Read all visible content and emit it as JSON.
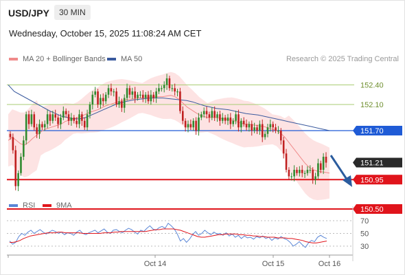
{
  "header": {
    "symbol": "USD/JPY",
    "timeframe": "30 MIN",
    "datetime": "Wednesday, October 15, 2025 11:08:24 AM CET"
  },
  "legend": {
    "ma20_label": "MA 20 + Bollinger Bands",
    "ma50_label": "MA 50",
    "credit": "Research © 2025 Trading Central",
    "rsi_label": "RSI",
    "ma9_label": "9MA"
  },
  "colors": {
    "ma20": "#f08a8a",
    "bands_fill": "#fde0e0",
    "ma50": "#3a5a9e",
    "candle_up": "#2f8a2f",
    "candle_down": "#c02020",
    "resistance_light": "#a9cd73",
    "pivot_line": "#1f5bd6",
    "support_line": "#e0141b",
    "price_tag": "#2a2a2a",
    "rsi": "#5a86d6",
    "rsi_ma": "#e0141b",
    "arrow": "#2b5c9e"
  },
  "chart_data": {
    "type": "candlestick",
    "instrument": "USD/JPY",
    "timeframe": "30 MIN",
    "x_tick_labels": [
      "Oct 14",
      "Oct 15",
      "Oct 16"
    ],
    "y_range": [
      150.2,
      152.95
    ],
    "levels": [
      {
        "value": 152.4,
        "label": "152.40",
        "style": "light"
      },
      {
        "value": 152.1,
        "label": "152.10",
        "style": "light"
      },
      {
        "value": 151.7,
        "label": "151.70",
        "style": "pivot"
      },
      {
        "value": 151.21,
        "label": "151.21",
        "style": "price"
      },
      {
        "value": 150.95,
        "label": "150.95",
        "style": "support"
      },
      {
        "value": 150.5,
        "label": "150.50",
        "style": "support"
      }
    ],
    "closes": [
      151.6,
      151.4,
      150.85,
      151.05,
      151.3,
      151.55,
      151.95,
      151.8,
      151.95,
      151.75,
      151.65,
      151.8,
      151.75,
      151.8,
      151.95,
      151.85,
      151.95,
      151.9,
      151.8,
      151.9,
      152.0,
      151.95,
      151.85,
      151.9,
      151.85,
      151.8,
      151.95,
      151.85,
      151.75,
      151.95,
      152.1,
      152.25,
      152.3,
      152.1,
      152.2,
      152.15,
      152.25,
      152.35,
      152.3,
      152.3,
      152.1,
      152.15,
      152.05,
      152.2,
      152.35,
      152.25,
      152.3,
      152.2,
      152.25,
      152.25,
      152.2,
      152.25,
      152.15,
      152.25,
      152.2,
      152.3,
      152.35,
      152.35,
      152.4,
      152.5,
      152.35,
      152.35,
      152.3,
      152.3,
      152.0,
      151.85,
      151.75,
      151.8,
      151.75,
      151.85,
      151.7,
      151.9,
      151.95,
      152.0,
      151.95,
      151.9,
      152.0,
      151.9,
      151.95,
      151.85,
      151.9,
      151.85,
      151.9,
      151.8,
      151.85,
      151.95,
      151.75,
      151.85,
      151.8,
      151.75,
      151.8,
      151.7,
      151.75,
      151.7,
      151.8,
      151.6,
      151.65,
      151.75,
      151.8,
      151.75,
      151.7,
      151.7,
      151.55,
      151.35,
      151.1,
      151.0,
      151.0,
      151.1,
      151.05,
      151.1,
      151.05,
      151.05,
      151.1,
      151.1,
      150.95,
      151.0,
      151.2,
      151.1,
      151.3,
      151.21
    ],
    "ma20": [
      151.55,
      151.6,
      151.55,
      151.5,
      151.48,
      151.52,
      151.58,
      151.63,
      151.68,
      151.72,
      151.74,
      151.76,
      151.78,
      151.8,
      151.84,
      151.86,
      151.88,
      151.9,
      151.92,
      151.95,
      151.98,
      152.0,
      152.02,
      152.05,
      152.08,
      152.1,
      152.12,
      152.14,
      152.16,
      152.17,
      152.18,
      152.19,
      152.2,
      152.2,
      152.21,
      152.22,
      152.22,
      152.22,
      152.22,
      152.23,
      152.24,
      152.22,
      152.18,
      152.12,
      152.06,
      152.02,
      151.98,
      151.94,
      151.92,
      151.9,
      151.9,
      151.9,
      151.89,
      151.88,
      151.87,
      151.86,
      151.84,
      151.82,
      151.8,
      151.8,
      151.79,
      151.78,
      151.77,
      151.76,
      151.74,
      151.72,
      151.7,
      151.66,
      151.6,
      151.52,
      151.44,
      151.36,
      151.28,
      151.2,
      151.14,
      151.1,
      151.08,
      151.07,
      151.06,
      151.05
    ],
    "ma50": [
      152.4,
      152.3,
      152.25,
      152.2,
      152.15,
      152.1,
      152.05,
      152.0,
      151.96,
      151.92,
      151.9,
      151.88,
      151.88,
      151.9,
      151.94,
      151.98,
      152.02,
      152.06,
      152.1,
      152.13,
      152.15,
      152.17,
      152.18,
      152.19,
      152.2,
      152.2,
      152.2,
      152.19,
      152.18,
      152.17,
      152.16,
      152.14,
      152.11,
      152.08,
      152.06,
      152.04,
      152.03,
      152.02,
      152.0,
      151.98,
      151.96,
      151.95,
      151.94,
      151.92,
      151.9,
      151.88,
      151.86,
      151.84,
      151.82,
      151.8,
      151.78,
      151.76,
      151.74,
      151.72,
      151.7
    ],
    "rsi_ticks": [
      70,
      50,
      30
    ],
    "rsi": [
      38,
      33,
      36,
      45,
      50,
      47,
      52,
      55,
      50,
      53,
      56,
      52,
      49,
      52,
      55,
      53,
      50,
      52,
      48,
      51,
      50,
      47,
      52,
      55,
      50,
      48,
      51,
      53,
      55,
      51,
      54,
      57,
      52,
      50,
      55,
      56,
      53,
      51,
      55,
      58,
      56,
      52,
      49,
      55,
      53,
      58,
      62,
      57,
      55,
      59,
      61,
      58,
      66,
      62,
      57,
      49,
      38,
      42,
      36,
      41,
      48,
      53,
      47,
      50,
      55,
      51,
      48,
      52,
      49,
      50,
      47,
      51,
      46,
      49,
      44,
      47,
      42,
      46,
      43,
      44,
      41,
      45,
      43,
      46,
      42,
      44,
      39,
      43,
      41,
      45,
      42,
      40,
      36,
      30,
      33,
      37,
      32,
      28,
      35,
      39,
      37,
      44,
      47,
      44,
      42
    ],
    "rsi_ma": [
      36,
      36,
      37,
      39,
      42,
      44,
      46,
      47,
      48,
      49,
      50,
      51,
      51,
      51,
      52,
      52,
      51,
      51,
      51,
      51,
      51,
      50,
      50,
      50,
      50,
      50,
      50,
      51,
      51,
      51,
      52,
      52,
      53,
      53,
      53,
      53,
      53,
      53,
      53,
      53,
      54,
      55,
      56,
      56,
      57,
      57,
      57,
      57,
      56,
      55,
      53,
      51,
      49,
      47,
      45,
      44,
      44,
      45,
      46,
      47,
      48,
      48,
      49,
      49,
      49,
      49,
      48,
      48,
      47,
      47,
      46,
      46,
      45,
      45,
      44,
      44,
      44,
      43,
      43,
      43,
      42,
      42,
      41,
      40,
      39,
      37,
      36,
      35,
      35,
      36,
      37,
      38
    ]
  },
  "x_axis": {
    "ticks": [
      "Oct 14",
      "Oct 15",
      "Oct 16"
    ]
  },
  "rsi_axis": {
    "ticks": [
      "70",
      "50",
      "30"
    ]
  }
}
